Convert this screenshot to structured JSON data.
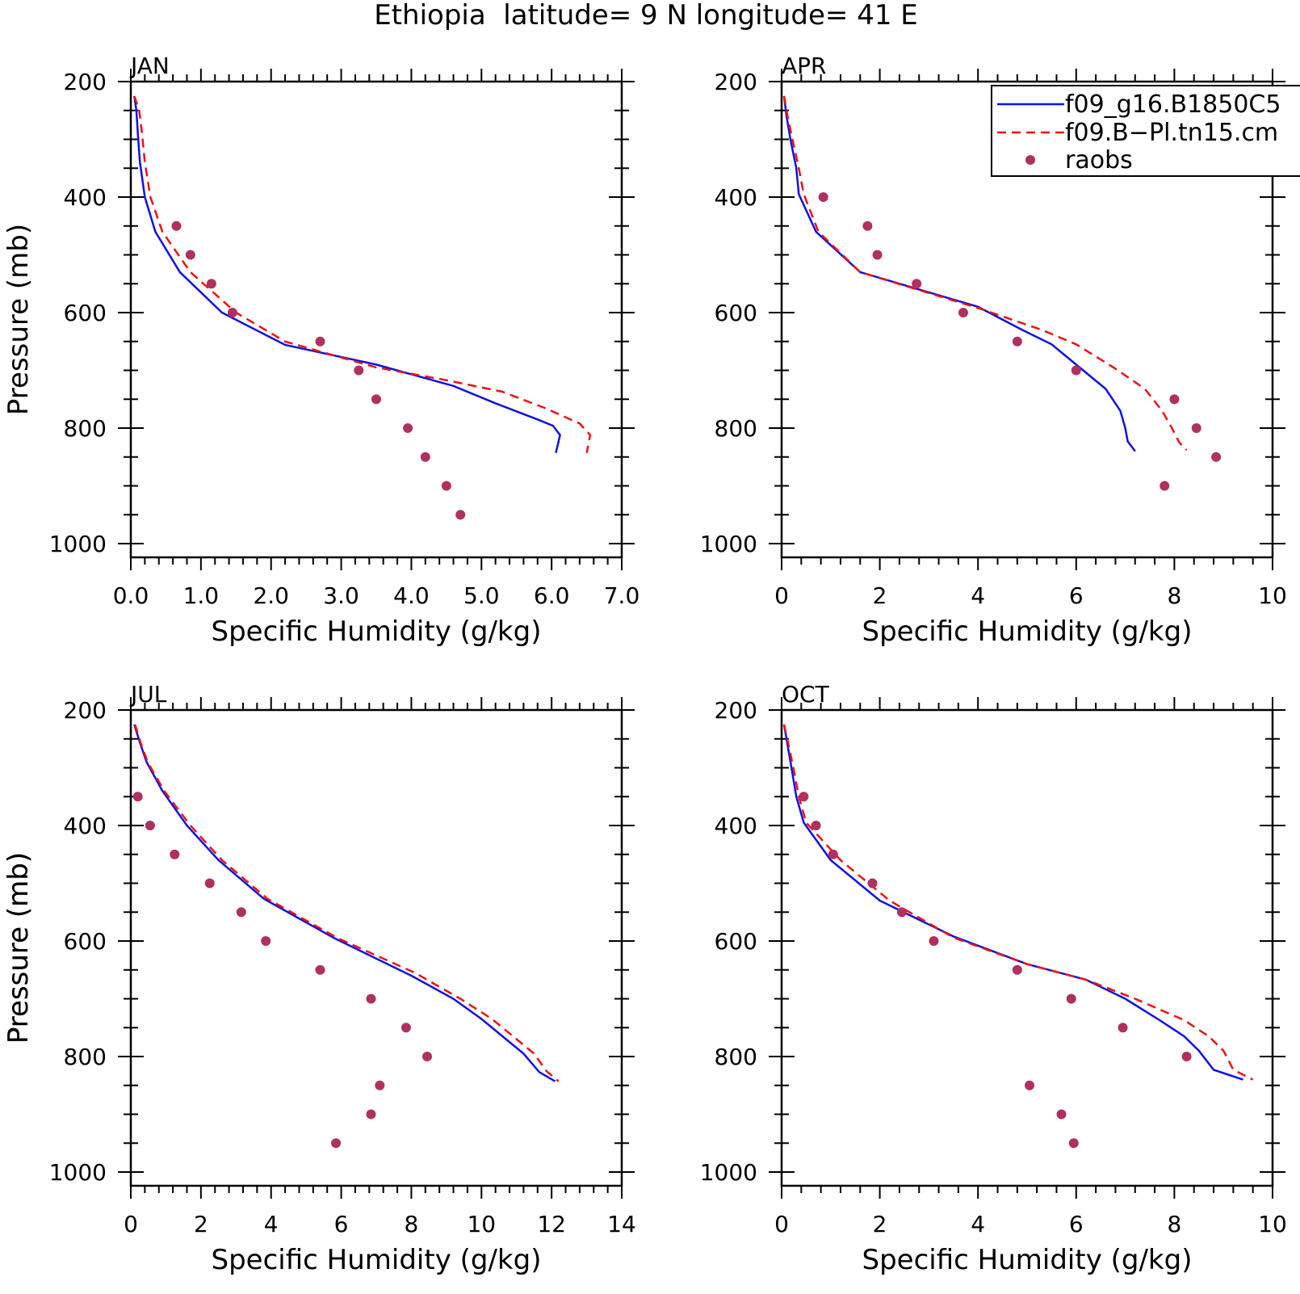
{
  "title": "Ethiopia  latitude= 9 N longitude= 41 E",
  "colors": {
    "model1": "#1010e6",
    "model2": "#ee1111",
    "raobs": "#b03060"
  },
  "legend": {
    "placement": "top-right of APR panel",
    "entries": [
      "f09_g16.B1850C5",
      "f09.B−Pl.tn15.cm",
      "raobs"
    ]
  },
  "chart_data": [
    {
      "type": "line",
      "panel": "JAN",
      "xlabel": "Specific Humidity (g/kg)",
      "ylabel": "Pressure (mb)",
      "xlim": [
        0,
        7
      ],
      "ylim": [
        200,
        1000
      ],
      "y_reversed": true,
      "xticks": [
        0,
        1,
        2,
        3,
        4,
        5,
        6,
        7
      ],
      "xtick_labels": [
        "0.0",
        "1.0",
        "2.0",
        "3.0",
        "4.0",
        "5.0",
        "6.0",
        "7.0"
      ],
      "yticks": [
        200,
        400,
        600,
        800,
        1000
      ],
      "series": [
        {
          "name": "f09_g16.B1850C5",
          "style": "solid",
          "points": [
            [
              0.05,
              225
            ],
            [
              0.08,
              250
            ],
            [
              0.1,
              290
            ],
            [
              0.13,
              340
            ],
            [
              0.2,
              400
            ],
            [
              0.35,
              460
            ],
            [
              0.7,
              530
            ],
            [
              1.3,
              600
            ],
            [
              2.2,
              656
            ],
            [
              3.5,
              690
            ],
            [
              4.6,
              727
            ],
            [
              5.2,
              757
            ],
            [
              5.8,
              785
            ],
            [
              6.02,
              796
            ],
            [
              6.12,
              812
            ],
            [
              6.06,
              843
            ]
          ]
        },
        {
          "name": "f09.B−Pl.tn15.cm",
          "style": "dashed",
          "points": [
            [
              0.05,
              225
            ],
            [
              0.12,
              250
            ],
            [
              0.16,
              290
            ],
            [
              0.2,
              340
            ],
            [
              0.28,
              400
            ],
            [
              0.45,
              460
            ],
            [
              0.85,
              530
            ],
            [
              1.5,
              600
            ],
            [
              2.2,
              650
            ],
            [
              3.5,
              695
            ],
            [
              4.5,
              717
            ],
            [
              5.3,
              737
            ],
            [
              5.9,
              765
            ],
            [
              6.4,
              792
            ],
            [
              6.55,
              812
            ],
            [
              6.5,
              843
            ]
          ]
        },
        {
          "name": "raobs",
          "style": "markers",
          "points": [
            [
              0.65,
              450
            ],
            [
              0.85,
              500
            ],
            [
              1.15,
              550
            ],
            [
              1.45,
              600
            ],
            [
              2.7,
              650
            ],
            [
              3.25,
              700
            ],
            [
              3.5,
              750
            ],
            [
              3.95,
              800
            ],
            [
              4.2,
              850
            ],
            [
              4.5,
              900
            ],
            [
              4.7,
              950
            ]
          ]
        }
      ]
    },
    {
      "type": "line",
      "panel": "APR",
      "xlabel": "Specific Humidity (g/kg)",
      "ylabel": "",
      "xlim": [
        0,
        10
      ],
      "ylim": [
        200,
        1000
      ],
      "y_reversed": true,
      "xticks": [
        0,
        2,
        4,
        6,
        8,
        10
      ],
      "xtick_labels": [
        "0",
        "2",
        "4",
        "6",
        "8",
        "10"
      ],
      "yticks": [
        200,
        400,
        600,
        800,
        1000
      ],
      "series": [
        {
          "name": "f09_g16.B1850C5",
          "style": "solid",
          "points": [
            [
              0.05,
              225
            ],
            [
              0.1,
              260
            ],
            [
              0.18,
              300
            ],
            [
              0.3,
              350
            ],
            [
              0.35,
              395
            ],
            [
              0.7,
              460
            ],
            [
              1.6,
              530
            ],
            [
              4.0,
              590
            ],
            [
              4.9,
              630
            ],
            [
              5.5,
              655
            ],
            [
              6.1,
              697
            ],
            [
              6.6,
              732
            ],
            [
              6.9,
              770
            ],
            [
              7.0,
              800
            ],
            [
              7.05,
              823
            ],
            [
              7.2,
              840
            ]
          ]
        },
        {
          "name": "f09.B−Pl.tn15.cm",
          "style": "dashed",
          "points": [
            [
              0.05,
              225
            ],
            [
              0.12,
              260
            ],
            [
              0.22,
              300
            ],
            [
              0.35,
              350
            ],
            [
              0.45,
              395
            ],
            [
              0.75,
              460
            ],
            [
              1.6,
              530
            ],
            [
              4.0,
              592
            ],
            [
              5.3,
              630
            ],
            [
              6.0,
              655
            ],
            [
              6.8,
              697
            ],
            [
              7.4,
              732
            ],
            [
              7.75,
              770
            ],
            [
              7.95,
              800
            ],
            [
              8.1,
              825
            ],
            [
              8.25,
              838
            ]
          ]
        },
        {
          "name": "raobs",
          "style": "markers",
          "points": [
            [
              0.85,
              400
            ],
            [
              1.75,
              450
            ],
            [
              1.95,
              500
            ],
            [
              2.75,
              550
            ],
            [
              3.7,
              600
            ],
            [
              4.8,
              650
            ],
            [
              6.0,
              700
            ],
            [
              8.0,
              750
            ],
            [
              8.45,
              800
            ],
            [
              8.85,
              850
            ],
            [
              7.8,
              900
            ]
          ]
        }
      ]
    },
    {
      "type": "line",
      "panel": "JUL",
      "xlabel": "Specific Humidity (g/kg)",
      "ylabel": "Pressure (mb)",
      "xlim": [
        0,
        14
      ],
      "ylim": [
        200,
        1000
      ],
      "y_reversed": true,
      "xticks": [
        0,
        2,
        4,
        6,
        8,
        10,
        12,
        14
      ],
      "xtick_labels": [
        "0",
        "2",
        "4",
        "6",
        "8",
        "10",
        "12",
        "14"
      ],
      "yticks": [
        200,
        400,
        600,
        800,
        1000
      ],
      "series": [
        {
          "name": "f09_g16.B1850C5",
          "style": "solid",
          "points": [
            [
              0.1,
              225
            ],
            [
              0.25,
              255
            ],
            [
              0.45,
              290
            ],
            [
              0.9,
              340
            ],
            [
              1.6,
              400
            ],
            [
              2.5,
              460
            ],
            [
              3.8,
              527
            ],
            [
              5.8,
              595
            ],
            [
              8.0,
              660
            ],
            [
              9.2,
              700
            ],
            [
              10.0,
              735
            ],
            [
              10.8,
              775
            ],
            [
              11.2,
              795
            ],
            [
              11.65,
              827
            ],
            [
              12.1,
              843
            ]
          ]
        },
        {
          "name": "f09.B−Pl.tn15.cm",
          "style": "dashed",
          "points": [
            [
              0.12,
              225
            ],
            [
              0.27,
              255
            ],
            [
              0.48,
              290
            ],
            [
              0.95,
              340
            ],
            [
              1.7,
              400
            ],
            [
              2.6,
              460
            ],
            [
              3.9,
              527
            ],
            [
              5.9,
              595
            ],
            [
              8.1,
              655
            ],
            [
              9.4,
              700
            ],
            [
              10.3,
              735
            ],
            [
              11.1,
              775
            ],
            [
              11.5,
              795
            ],
            [
              11.85,
              825
            ],
            [
              12.2,
              843
            ]
          ]
        },
        {
          "name": "raobs",
          "style": "markers",
          "points": [
            [
              0.2,
              350
            ],
            [
              0.55,
              400
            ],
            [
              1.25,
              450
            ],
            [
              2.25,
              500
            ],
            [
              3.15,
              550
            ],
            [
              3.85,
              600
            ],
            [
              5.4,
              650
            ],
            [
              6.85,
              700
            ],
            [
              7.85,
              750
            ],
            [
              8.45,
              800
            ],
            [
              7.1,
              850
            ],
            [
              6.85,
              900
            ],
            [
              5.85,
              950
            ]
          ]
        }
      ]
    },
    {
      "type": "line",
      "panel": "OCT",
      "xlabel": "Specific Humidity (g/kg)",
      "ylabel": "Pressure (mb)",
      "xlim": [
        0,
        10
      ],
      "ylim": [
        200,
        1000
      ],
      "y_reversed": true,
      "xticks": [
        0,
        2,
        4,
        6,
        8,
        10
      ],
      "xtick_labels": [
        "0",
        "2",
        "4",
        "6",
        "8",
        "10"
      ],
      "yticks": [
        200,
        400,
        600,
        800,
        1000
      ],
      "series": [
        {
          "name": "f09_g16.B1850C5",
          "style": "solid",
          "points": [
            [
              0.05,
              225
            ],
            [
              0.12,
              260
            ],
            [
              0.2,
              300
            ],
            [
              0.3,
              350
            ],
            [
              0.45,
              395
            ],
            [
              1.0,
              460
            ],
            [
              2.0,
              530
            ],
            [
              3.5,
              592
            ],
            [
              5.0,
              640
            ],
            [
              6.2,
              667
            ],
            [
              7.0,
              700
            ],
            [
              7.7,
              737
            ],
            [
              8.2,
              765
            ],
            [
              8.5,
              790
            ],
            [
              8.8,
              823
            ],
            [
              9.4,
              840
            ]
          ]
        },
        {
          "name": "f09.B−Pl.tn15.cm",
          "style": "dashed",
          "points": [
            [
              0.05,
              225
            ],
            [
              0.14,
              260
            ],
            [
              0.24,
              300
            ],
            [
              0.35,
              350
            ],
            [
              0.5,
              395
            ],
            [
              1.2,
              460
            ],
            [
              2.2,
              530
            ],
            [
              3.5,
              594
            ],
            [
              5.0,
              640
            ],
            [
              6.2,
              667
            ],
            [
              7.2,
              700
            ],
            [
              8.2,
              737
            ],
            [
              8.7,
              765
            ],
            [
              9.0,
              790
            ],
            [
              9.2,
              823
            ],
            [
              9.6,
              840
            ]
          ]
        },
        {
          "name": "raobs",
          "style": "markers",
          "points": [
            [
              0.45,
              350
            ],
            [
              0.7,
              400
            ],
            [
              1.05,
              450
            ],
            [
              1.85,
              500
            ],
            [
              2.45,
              550
            ],
            [
              3.1,
              600
            ],
            [
              4.8,
              650
            ],
            [
              5.9,
              700
            ],
            [
              6.95,
              750
            ],
            [
              8.25,
              800
            ],
            [
              5.05,
              850
            ],
            [
              5.7,
              900
            ],
            [
              5.95,
              950
            ]
          ]
        }
      ]
    }
  ]
}
